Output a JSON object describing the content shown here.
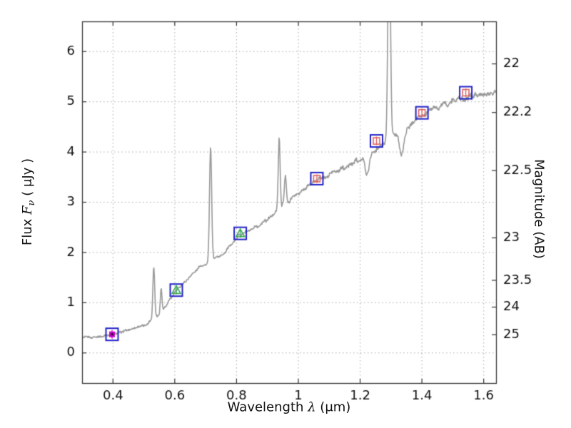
{
  "figure": {
    "background": "#ffffff",
    "xlabel": {
      "prefix": "Wavelength  ",
      "symbol": "λ",
      "suffix": " (μm)"
    },
    "ylabel_left": {
      "prefix": "Flux  ",
      "symbol": "F",
      "subscript": "ν",
      "suffix": "  ( μJy )"
    },
    "ylabel_right": "Magnitude (AB)"
  },
  "chart_data": {
    "type": "line",
    "title": "",
    "xlabel": "Wavelength λ (μm)",
    "ylabel": "Flux Fν (μJy)",
    "y2label": "Magnitude (AB)",
    "xlim": [
      0.3,
      1.64
    ],
    "ylim": [
      -0.6,
      6.6
    ],
    "x_ticks": {
      "values": [
        0.4,
        0.6,
        0.8,
        1.0,
        1.2,
        1.4,
        1.6
      ],
      "labels": [
        "0.4",
        "0.6",
        "0.8",
        "1",
        "1.2",
        "1.4",
        "1.6"
      ]
    },
    "y_ticks_left": {
      "values": [
        0,
        1,
        2,
        3,
        4,
        5,
        6
      ],
      "labels": [
        "0",
        "1",
        "2",
        "3",
        "4",
        "5",
        "6"
      ]
    },
    "y_ticks_right": {
      "values": [
        22,
        22.2,
        22.5,
        23,
        23.5,
        24,
        25
      ],
      "labels": [
        "22",
        "22.2",
        "22.5",
        "23",
        "23.5",
        "24",
        "25"
      ],
      "ab_zero_point_ujy": 23.9
    },
    "grid": {
      "show": true,
      "style": "dotted",
      "color": "#a8a8a8"
    },
    "axis_color": "#333333",
    "tick_label_color": "#111111",
    "spectrum": {
      "color": "#999999",
      "linewidth": 1.6,
      "continuum": [
        [
          0.3,
          0.3
        ],
        [
          0.34,
          0.31
        ],
        [
          0.38,
          0.35
        ],
        [
          0.4,
          0.38
        ],
        [
          0.43,
          0.42
        ],
        [
          0.46,
          0.47
        ],
        [
          0.49,
          0.53
        ],
        [
          0.515,
          0.6
        ],
        [
          0.535,
          0.68
        ],
        [
          0.555,
          0.82
        ],
        [
          0.575,
          0.98
        ],
        [
          0.6,
          1.2
        ],
        [
          0.62,
          1.32
        ],
        [
          0.64,
          1.45
        ],
        [
          0.66,
          1.6
        ],
        [
          0.68,
          1.72
        ],
        [
          0.7,
          1.76
        ],
        [
          0.715,
          1.8
        ],
        [
          0.73,
          1.88
        ],
        [
          0.75,
          1.95
        ],
        [
          0.77,
          2.05
        ],
        [
          0.79,
          2.22
        ],
        [
          0.81,
          2.35
        ],
        [
          0.83,
          2.42
        ],
        [
          0.85,
          2.46
        ],
        [
          0.87,
          2.52
        ],
        [
          0.89,
          2.62
        ],
        [
          0.91,
          2.72
        ],
        [
          0.93,
          2.85
        ],
        [
          0.95,
          2.95
        ],
        [
          0.97,
          3.02
        ],
        [
          1.0,
          3.18
        ],
        [
          1.03,
          3.33
        ],
        [
          1.06,
          3.45
        ],
        [
          1.09,
          3.52
        ],
        [
          1.12,
          3.6
        ],
        [
          1.15,
          3.7
        ],
        [
          1.18,
          3.8
        ],
        [
          1.21,
          3.88
        ],
        [
          1.24,
          4.0
        ],
        [
          1.27,
          4.15
        ],
        [
          1.3,
          4.3
        ],
        [
          1.33,
          4.38
        ],
        [
          1.36,
          4.5
        ],
        [
          1.39,
          4.7
        ],
        [
          1.42,
          4.8
        ],
        [
          1.45,
          4.88
        ],
        [
          1.48,
          4.95
        ],
        [
          1.51,
          5.02
        ],
        [
          1.54,
          5.08
        ],
        [
          1.57,
          5.12
        ],
        [
          1.6,
          5.15
        ],
        [
          1.64,
          5.22
        ]
      ],
      "emission_lines": [
        {
          "center": 0.532,
          "height": 1.05,
          "sigma": 0.003
        },
        {
          "center": 0.556,
          "height": 0.45,
          "sigma": 0.0025
        },
        {
          "center": 0.716,
          "height": 2.3,
          "sigma": 0.0035
        },
        {
          "center": 0.938,
          "height": 1.4,
          "sigma": 0.003
        },
        {
          "center": 0.958,
          "height": 0.55,
          "sigma": 0.003
        },
        {
          "center": 1.294,
          "height": 4.5,
          "sigma": 0.004
        }
      ],
      "absorption_lines": [
        {
          "center": 1.222,
          "depth": 0.4,
          "sigma": 0.006
        },
        {
          "center": 1.335,
          "depth": 0.45,
          "sigma": 0.007
        }
      ],
      "noise_amplitude": 0.05
    },
    "photometry": {
      "outer_marker": {
        "shape": "square",
        "size": 17,
        "color": "#2424c8",
        "linewidth": 2
      },
      "points": [
        {
          "x": 0.397,
          "flux": 0.37,
          "inner": {
            "shape": "square",
            "fill": true,
            "color": "#cc00cc",
            "size": 8
          }
        },
        {
          "x": 0.605,
          "flux": 1.25,
          "inner": {
            "shape": "triangle",
            "fill": false,
            "color": "#3aa85a",
            "size": 11
          }
        },
        {
          "x": 0.812,
          "flux": 2.38,
          "inner": {
            "shape": "triangle",
            "fill": false,
            "color": "#3aa85a",
            "size": 11
          }
        },
        {
          "x": 1.06,
          "flux": 3.47,
          "inner": {
            "shape": "square",
            "fill": false,
            "color": "#e06464",
            "size": 9
          }
        },
        {
          "x": 1.253,
          "flux": 4.22,
          "inner": {
            "shape": "square",
            "fill": false,
            "color": "#e06464",
            "size": 9
          }
        },
        {
          "x": 1.4,
          "flux": 4.78,
          "inner": {
            "shape": "square",
            "fill": false,
            "color": "#e06464",
            "size": 9
          }
        },
        {
          "x": 1.542,
          "flux": 5.18,
          "inner": {
            "shape": "square",
            "fill": false,
            "color": "#e06464",
            "size": 9
          }
        }
      ]
    }
  }
}
